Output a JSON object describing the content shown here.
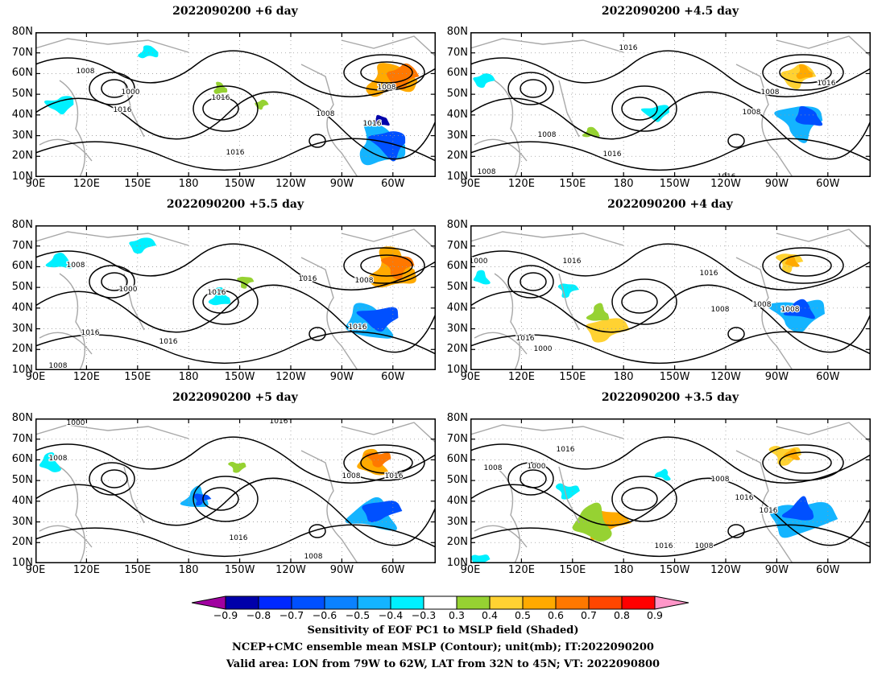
{
  "panels": [
    {
      "title": "2022090200  +6 day",
      "contour_labels": [
        "1008",
        "1000",
        "1016",
        "1016",
        "1008",
        "1016",
        "1016",
        "1008"
      ]
    },
    {
      "title": "2022090200  +4.5 day",
      "contour_labels": [
        "1016",
        "1008",
        "1016",
        "1008",
        "1016",
        "1008",
        "1016",
        "1008"
      ]
    },
    {
      "title": "2022090200  +5.5 day",
      "contour_labels": [
        "1008",
        "1000",
        "1016",
        "1016",
        "1016",
        "1008",
        "1016",
        "1016",
        "1008"
      ]
    },
    {
      "title": "2022090200  +4 day",
      "contour_labels": [
        "1000",
        "1016",
        "1016",
        "1000",
        "1008",
        "1008",
        "1008",
        "1016"
      ]
    },
    {
      "title": "2022090200  +5 day",
      "contour_labels": [
        "1000",
        "1016",
        "1008",
        "1016",
        "1008",
        "1016",
        "1008"
      ]
    },
    {
      "title": "2022090200  +3.5 day",
      "contour_labels": [
        "1016",
        "1008",
        "1000",
        "1008",
        "1016",
        "1008",
        "1016",
        "1016"
      ]
    }
  ],
  "lat_labels": [
    "80N",
    "70N",
    "60N",
    "50N",
    "40N",
    "30N",
    "20N",
    "10N"
  ],
  "lon_labels": [
    "90E",
    "120E",
    "150E",
    "180",
    "150W",
    "120W",
    "90W",
    "60W"
  ],
  "colorbar": {
    "colors": [
      "#a000a0",
      "#0000aa",
      "#0028ff",
      "#0050ff",
      "#0a82ff",
      "#14b4ff",
      "#00f0ff",
      "#ffffff",
      "#96d232",
      "#ffd232",
      "#ffaa00",
      "#ff7800",
      "#ff4600",
      "#ff0000",
      "#ff96c8"
    ],
    "labels": [
      "−0.9",
      "−0.8",
      "−0.7",
      "−0.6",
      "−0.5",
      "−0.4",
      "−0.3",
      "0.3",
      "0.4",
      "0.5",
      "0.6",
      "0.7",
      "0.8",
      "0.9"
    ]
  },
  "captions": [
    "Sensitivity of EOF PC1 to MSLP field (Shaded)",
    "NCEP+CMC ensemble mean MSLP (Contour); unit(mb); IT:2022090200",
    "Valid area: LON from 79W to 62W, LAT from 32N to 45N; VT: 2022090800"
  ],
  "colors": {
    "coast": "#a8a8a8",
    "contour": "#000000",
    "grid": "#999999"
  }
}
